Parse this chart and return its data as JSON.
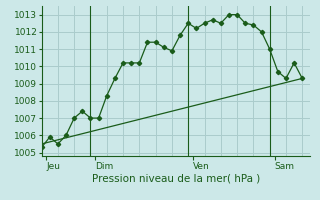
{
  "bg_color": "#cce8e8",
  "grid_color": "#aacccc",
  "line_color": "#1a5c1a",
  "title": "Pression niveau de la mer( hPa )",
  "ylim": [
    1004.8,
    1013.5
  ],
  "yticks": [
    1005,
    1006,
    1007,
    1008,
    1009,
    1010,
    1011,
    1012,
    1013
  ],
  "xlim": [
    0,
    16.5
  ],
  "day_labels": [
    "Jeu",
    "Dim",
    "Ven",
    "Sam"
  ],
  "day_positions": [
    0.3,
    3.3,
    9.3,
    14.3
  ],
  "vline_positions": [
    3,
    9,
    14
  ],
  "series1_x": [
    0,
    0.5,
    1.0,
    1.5,
    2.0,
    2.5,
    3.0,
    3.5,
    4.0,
    4.5,
    5.0,
    5.5,
    6.0,
    6.5,
    7.0,
    7.5,
    8.0,
    8.5,
    9.0,
    9.5,
    10.0,
    10.5,
    11.0,
    11.5,
    12.0,
    12.5,
    13.0,
    13.5,
    14.0,
    14.5,
    15.0,
    15.5,
    16.0
  ],
  "series1_y": [
    1005.3,
    1005.9,
    1005.5,
    1006.0,
    1007.0,
    1007.4,
    1007.0,
    1007.0,
    1008.3,
    1009.3,
    1010.2,
    1010.2,
    1010.2,
    1011.4,
    1011.4,
    1011.1,
    1010.9,
    1011.8,
    1012.5,
    1012.2,
    1012.5,
    1012.7,
    1012.5,
    1013.0,
    1013.0,
    1012.5,
    1012.4,
    1012.0,
    1011.0,
    1009.7,
    1009.3,
    1010.2,
    1009.3
  ],
  "series2_x": [
    0,
    16.0
  ],
  "series2_y": [
    1005.5,
    1009.3
  ],
  "title_fontsize": 7.5,
  "tick_fontsize": 6.5
}
